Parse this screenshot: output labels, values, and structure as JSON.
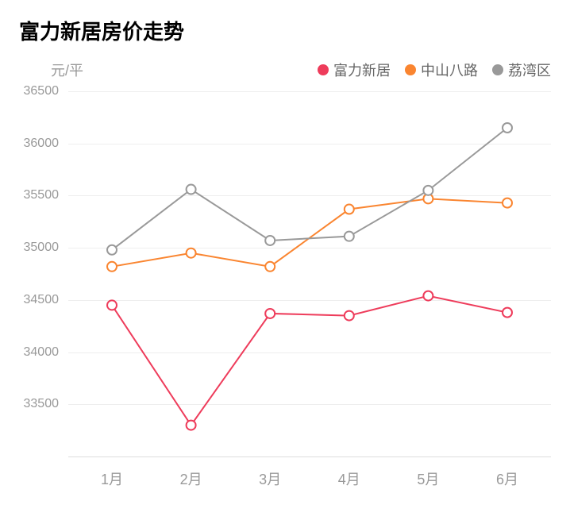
{
  "title": "富力新居房价走势",
  "chart": {
    "type": "line",
    "ylabel": "元/平",
    "background_color": "#ffffff",
    "grid_color": "#eeeeee",
    "axis_color": "#dddddd",
    "text_color": "#999999",
    "title_color": "#000000",
    "title_fontsize": 26,
    "label_fontsize": 18,
    "tick_fontsize": 16,
    "ylim": [
      33000,
      36500
    ],
    "yticks": [
      33500,
      34000,
      34500,
      35000,
      35500,
      36000,
      36500
    ],
    "xticks": [
      "1月",
      "2月",
      "3月",
      "4月",
      "5月",
      "6月"
    ],
    "line_width": 2,
    "marker_radius": 6,
    "marker_fill": "#ffffff",
    "marker_stroke_width": 2,
    "series": [
      {
        "name": "富力新居",
        "color": "#ee3c5b",
        "values": [
          34450,
          33300,
          34370,
          34350,
          34540,
          34380
        ]
      },
      {
        "name": "中山八路",
        "color": "#fa8530",
        "values": [
          34820,
          34950,
          34820,
          35370,
          35470,
          35430
        ]
      },
      {
        "name": "荔湾区",
        "color": "#999999",
        "values": [
          34980,
          35560,
          35070,
          35110,
          35550,
          36150
        ]
      }
    ]
  }
}
